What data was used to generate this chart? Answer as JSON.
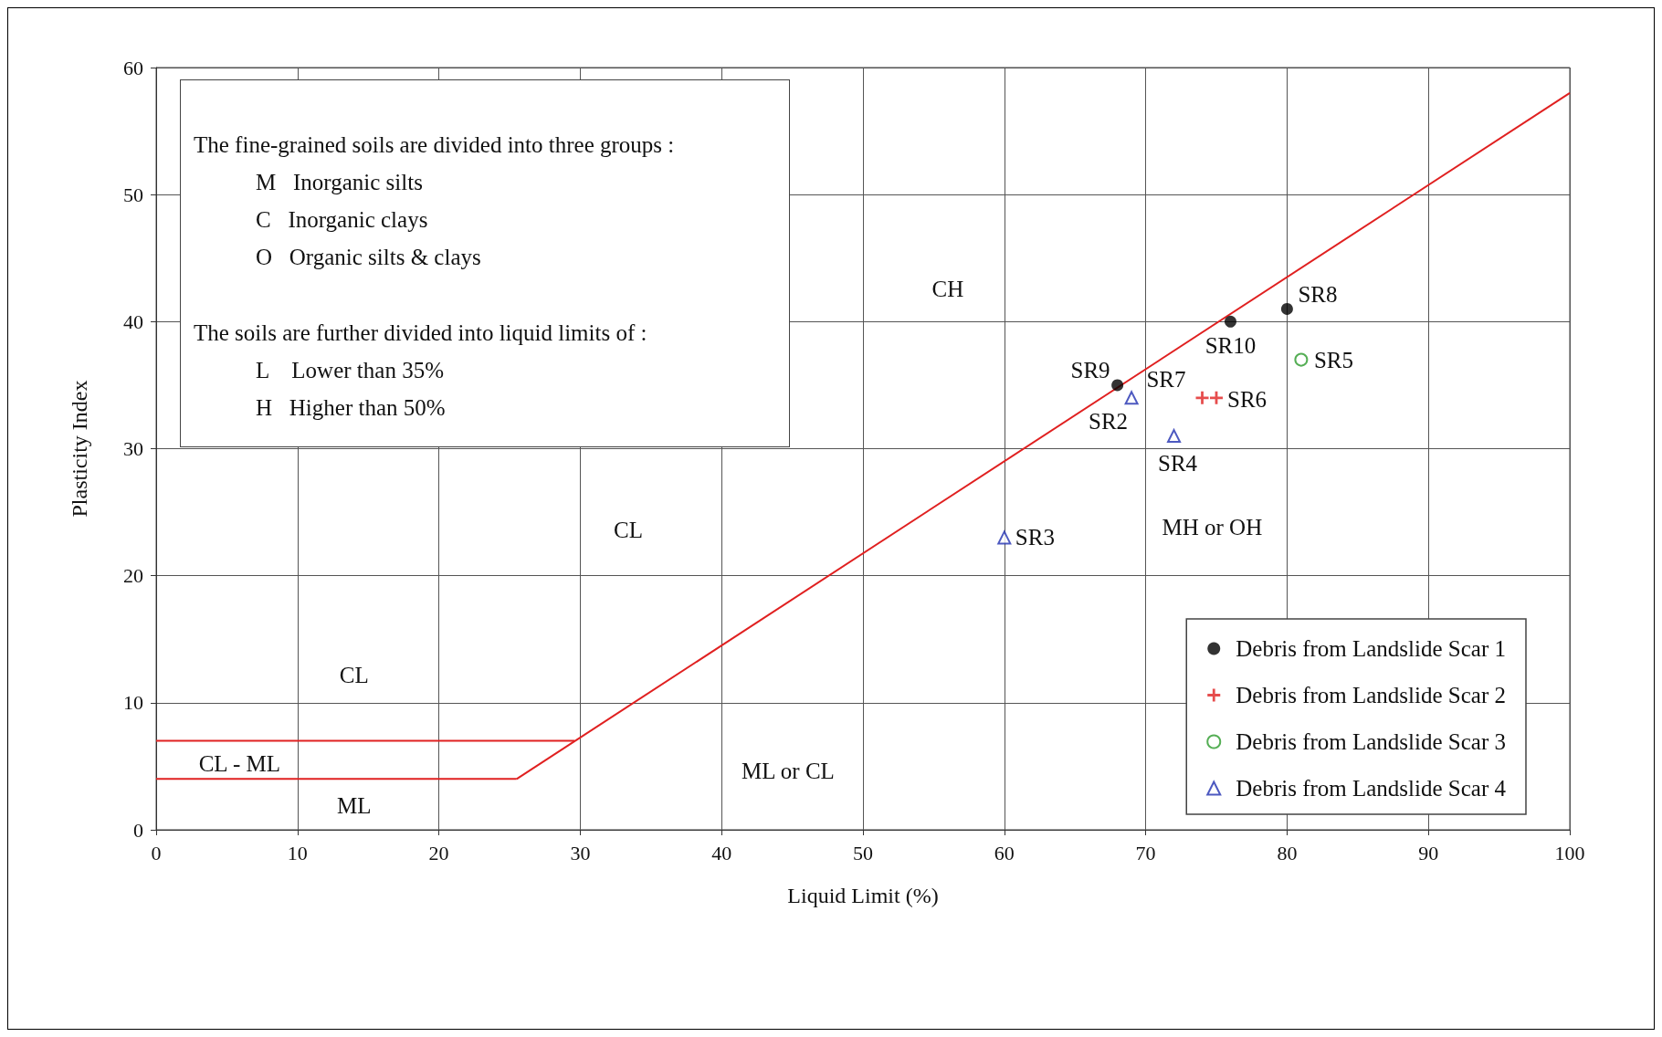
{
  "chart_data": {
    "type": "scatter",
    "xlabel": "Liquid Limit (%)",
    "ylabel": "Plasticity Index",
    "xlim": [
      0,
      100
    ],
    "xticks": [
      0,
      10,
      20,
      30,
      40,
      50,
      60,
      70,
      80,
      90,
      100
    ],
    "ylim": [
      0,
      60
    ],
    "yticks": [
      0,
      10,
      20,
      30,
      40,
      50,
      60
    ],
    "grid": true,
    "legend": "bottom right",
    "series": [
      {
        "type": "line",
        "color": "#e02020",
        "x": [
          0,
          29.6
        ],
        "values": [
          7,
          7
        ],
        "marker": "none"
      },
      {
        "type": "line",
        "color": "#e02020",
        "x": [
          0,
          25.5
        ],
        "values": [
          4,
          4
        ],
        "marker": "none"
      },
      {
        "type": "line",
        "color": "#e02020",
        "x": [
          25.5,
          100
        ],
        "values": [
          4,
          58
        ],
        "marker": "none"
      },
      {
        "name": "Debris from Landslide Scar 1",
        "color": "#000000",
        "marker": "circle",
        "x": [
          68,
          76,
          80
        ],
        "values": [
          35,
          40,
          41
        ]
      },
      {
        "name": "Debris from Landslide Scar 2",
        "color": "#e02020",
        "marker": "cross",
        "x": [
          74,
          75
        ],
        "values": [
          34,
          34
        ]
      },
      {
        "name": "Debris from Landslide Scar 3",
        "color": "#2a9a2a",
        "marker": "circle",
        "x": [
          81
        ],
        "values": [
          37
        ]
      },
      {
        "name": "Debris from Landslide Scar 4",
        "color": "#2030b0",
        "marker": "triangle",
        "x": [
          69,
          72,
          60
        ],
        "values": [
          34,
          31,
          23
        ]
      }
    ],
    "annotations": [
      "The fine-grained soils are divided into three groups :",
      "M   Inorganic silts",
      "C   Inorganic clays",
      "O   Organic silts & clays",
      "The soils are further divided into liquid limits of :",
      "L    Lower than 35%",
      "H   Higher than 50%",
      {
        "text": "SR9",
        "x": 68,
        "y": 35
      },
      {
        "text": "SR10",
        "x": 76,
        "y": 40
      },
      {
        "text": "SR8",
        "x": 80,
        "y": 41
      },
      {
        "text": "SR7",
        "x": 74,
        "y": 34
      },
      {
        "text": "SR6",
        "x": 75,
        "y": 34
      },
      {
        "text": "SR5",
        "x": 81,
        "y": 37
      },
      {
        "text": "SR2",
        "x": 69,
        "y": 34
      },
      {
        "text": "SR4",
        "x": 72,
        "y": 31
      },
      {
        "text": "SR3",
        "x": 60,
        "y": 23
      },
      "CH",
      "CL",
      "CL",
      "CL - ML",
      "ML",
      "ML or CL",
      "MH or OH"
    ]
  }
}
